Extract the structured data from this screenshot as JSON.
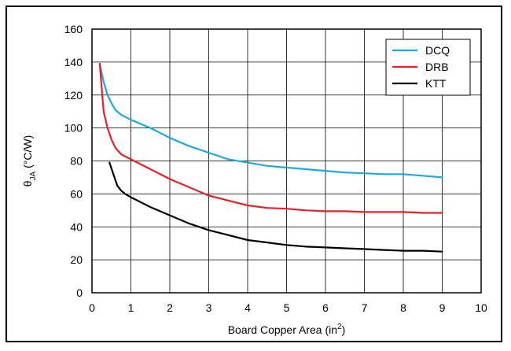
{
  "chart_data": {
    "type": "line",
    "xlabel": "Board Copper Area (in",
    "xlabel_sup": "2",
    "xlabel_end": ")",
    "ylabel_theta": "θ",
    "ylabel_sub": "JA",
    "ylabel_unit": " (°C/W)",
    "xlim": [
      0,
      10
    ],
    "ylim": [
      0,
      160
    ],
    "x_ticks": [
      "0",
      "1",
      "2",
      "3",
      "4",
      "5",
      "6",
      "7",
      "8",
      "9",
      "10"
    ],
    "y_ticks": [
      "0",
      "20",
      "40",
      "60",
      "80",
      "100",
      "120",
      "140",
      "160"
    ],
    "grid": true,
    "legend_position": "top-right",
    "series": [
      {
        "name": "DCQ",
        "color": "#1ea8de",
        "points": [
          [
            0.2,
            139
          ],
          [
            0.3,
            128
          ],
          [
            0.4,
            120
          ],
          [
            0.5,
            115
          ],
          [
            0.6,
            111
          ],
          [
            0.75,
            108
          ],
          [
            1,
            105
          ],
          [
            1.5,
            100
          ],
          [
            2,
            94
          ],
          [
            2.5,
            89
          ],
          [
            3,
            85
          ],
          [
            3.5,
            81
          ],
          [
            4,
            79
          ],
          [
            4.5,
            77
          ],
          [
            5,
            76
          ],
          [
            5.5,
            75
          ],
          [
            6,
            74
          ],
          [
            6.5,
            73
          ],
          [
            7,
            72.5
          ],
          [
            7.5,
            72
          ],
          [
            8,
            72
          ],
          [
            8.5,
            71
          ],
          [
            9,
            70
          ]
        ]
      },
      {
        "name": "DRB",
        "color": "#e8202a",
        "points": [
          [
            0.2,
            139
          ],
          [
            0.25,
            124
          ],
          [
            0.3,
            110
          ],
          [
            0.4,
            100
          ],
          [
            0.5,
            93
          ],
          [
            0.6,
            88
          ],
          [
            0.75,
            84
          ],
          [
            1,
            81
          ],
          [
            1.5,
            75
          ],
          [
            2,
            69
          ],
          [
            2.5,
            64
          ],
          [
            3,
            59
          ],
          [
            3.5,
            56
          ],
          [
            4,
            53
          ],
          [
            4.5,
            51.5
          ],
          [
            5,
            51
          ],
          [
            5.5,
            50
          ],
          [
            6,
            49.5
          ],
          [
            6.5,
            49.5
          ],
          [
            7,
            49
          ],
          [
            7.5,
            49
          ],
          [
            8,
            49
          ],
          [
            8.5,
            48.5
          ],
          [
            9,
            48.5
          ]
        ]
      },
      {
        "name": "KTT",
        "color": "#000000",
        "points": [
          [
            0.45,
            79
          ],
          [
            0.55,
            72
          ],
          [
            0.65,
            65
          ],
          [
            0.75,
            62
          ],
          [
            0.85,
            60
          ],
          [
            1,
            58
          ],
          [
            1.5,
            52
          ],
          [
            2,
            47
          ],
          [
            2.5,
            42
          ],
          [
            3,
            38
          ],
          [
            3.5,
            35
          ],
          [
            4,
            32
          ],
          [
            4.5,
            30.5
          ],
          [
            5,
            29
          ],
          [
            5.5,
            28
          ],
          [
            6,
            27.5
          ],
          [
            6.5,
            27
          ],
          [
            7,
            26.5
          ],
          [
            7.5,
            26
          ],
          [
            8,
            25.5
          ],
          [
            8.5,
            25.5
          ],
          [
            9,
            25
          ]
        ]
      }
    ]
  }
}
